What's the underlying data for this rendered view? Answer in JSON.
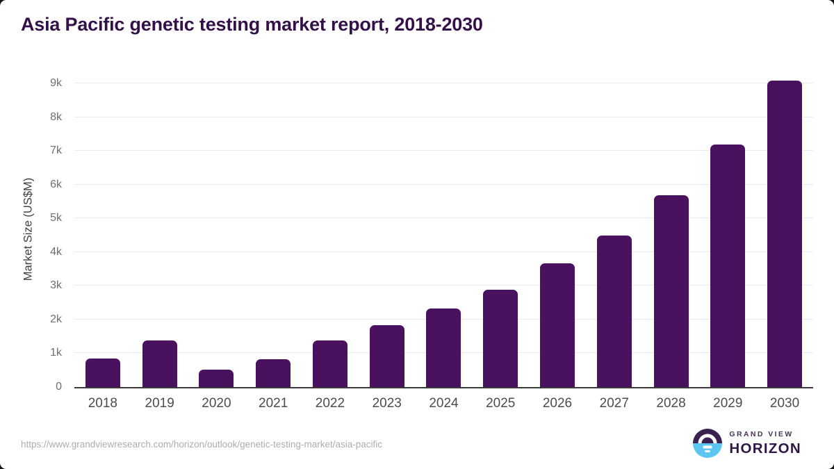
{
  "chart_data": {
    "type": "bar",
    "title": "Asia Pacific genetic testing market report, 2018-2030",
    "categories": [
      "2018",
      "2019",
      "2020",
      "2021",
      "2022",
      "2023",
      "2024",
      "2025",
      "2026",
      "2027",
      "2028",
      "2029",
      "2030"
    ],
    "values": [
      850,
      1390,
      505,
      830,
      1375,
      1840,
      2320,
      2885,
      3660,
      4500,
      5680,
      7180,
      9080
    ],
    "xlabel": "",
    "ylabel": "Market Size (US$M)",
    "ylim": [
      0,
      9310
    ],
    "ytick_values": [
      0,
      1000,
      2000,
      3000,
      4000,
      5000,
      6000,
      7000,
      8000,
      9000
    ],
    "ytick_labels": [
      "0",
      "1k",
      "2k",
      "3k",
      "4k",
      "5k",
      "6k",
      "7k",
      "8k",
      "9k"
    ],
    "grid": true,
    "legend": false,
    "bar_color": "#49115e"
  },
  "footer": {
    "source_url": "https://www.grandviewresearch.com/horizon/outlook/genetic-testing-market/asia-pacific",
    "logo": {
      "top": "GRAND VIEW",
      "bottom": "HORIZON"
    }
  },
  "colors": {
    "bar": "#49115e",
    "title": "#331049",
    "grid": "#ebebeb",
    "axis": "#3a3a3a",
    "ytick": "#6e6e6e",
    "xtick": "#4c4c4c",
    "axis_title": "#3e3e3e",
    "url": "#adadad",
    "logo_purple": "#3b2152",
    "logo_blue": "#5cc6f1",
    "logo_text_dark": "#2c1745",
    "logo_text_small": "#463256"
  }
}
